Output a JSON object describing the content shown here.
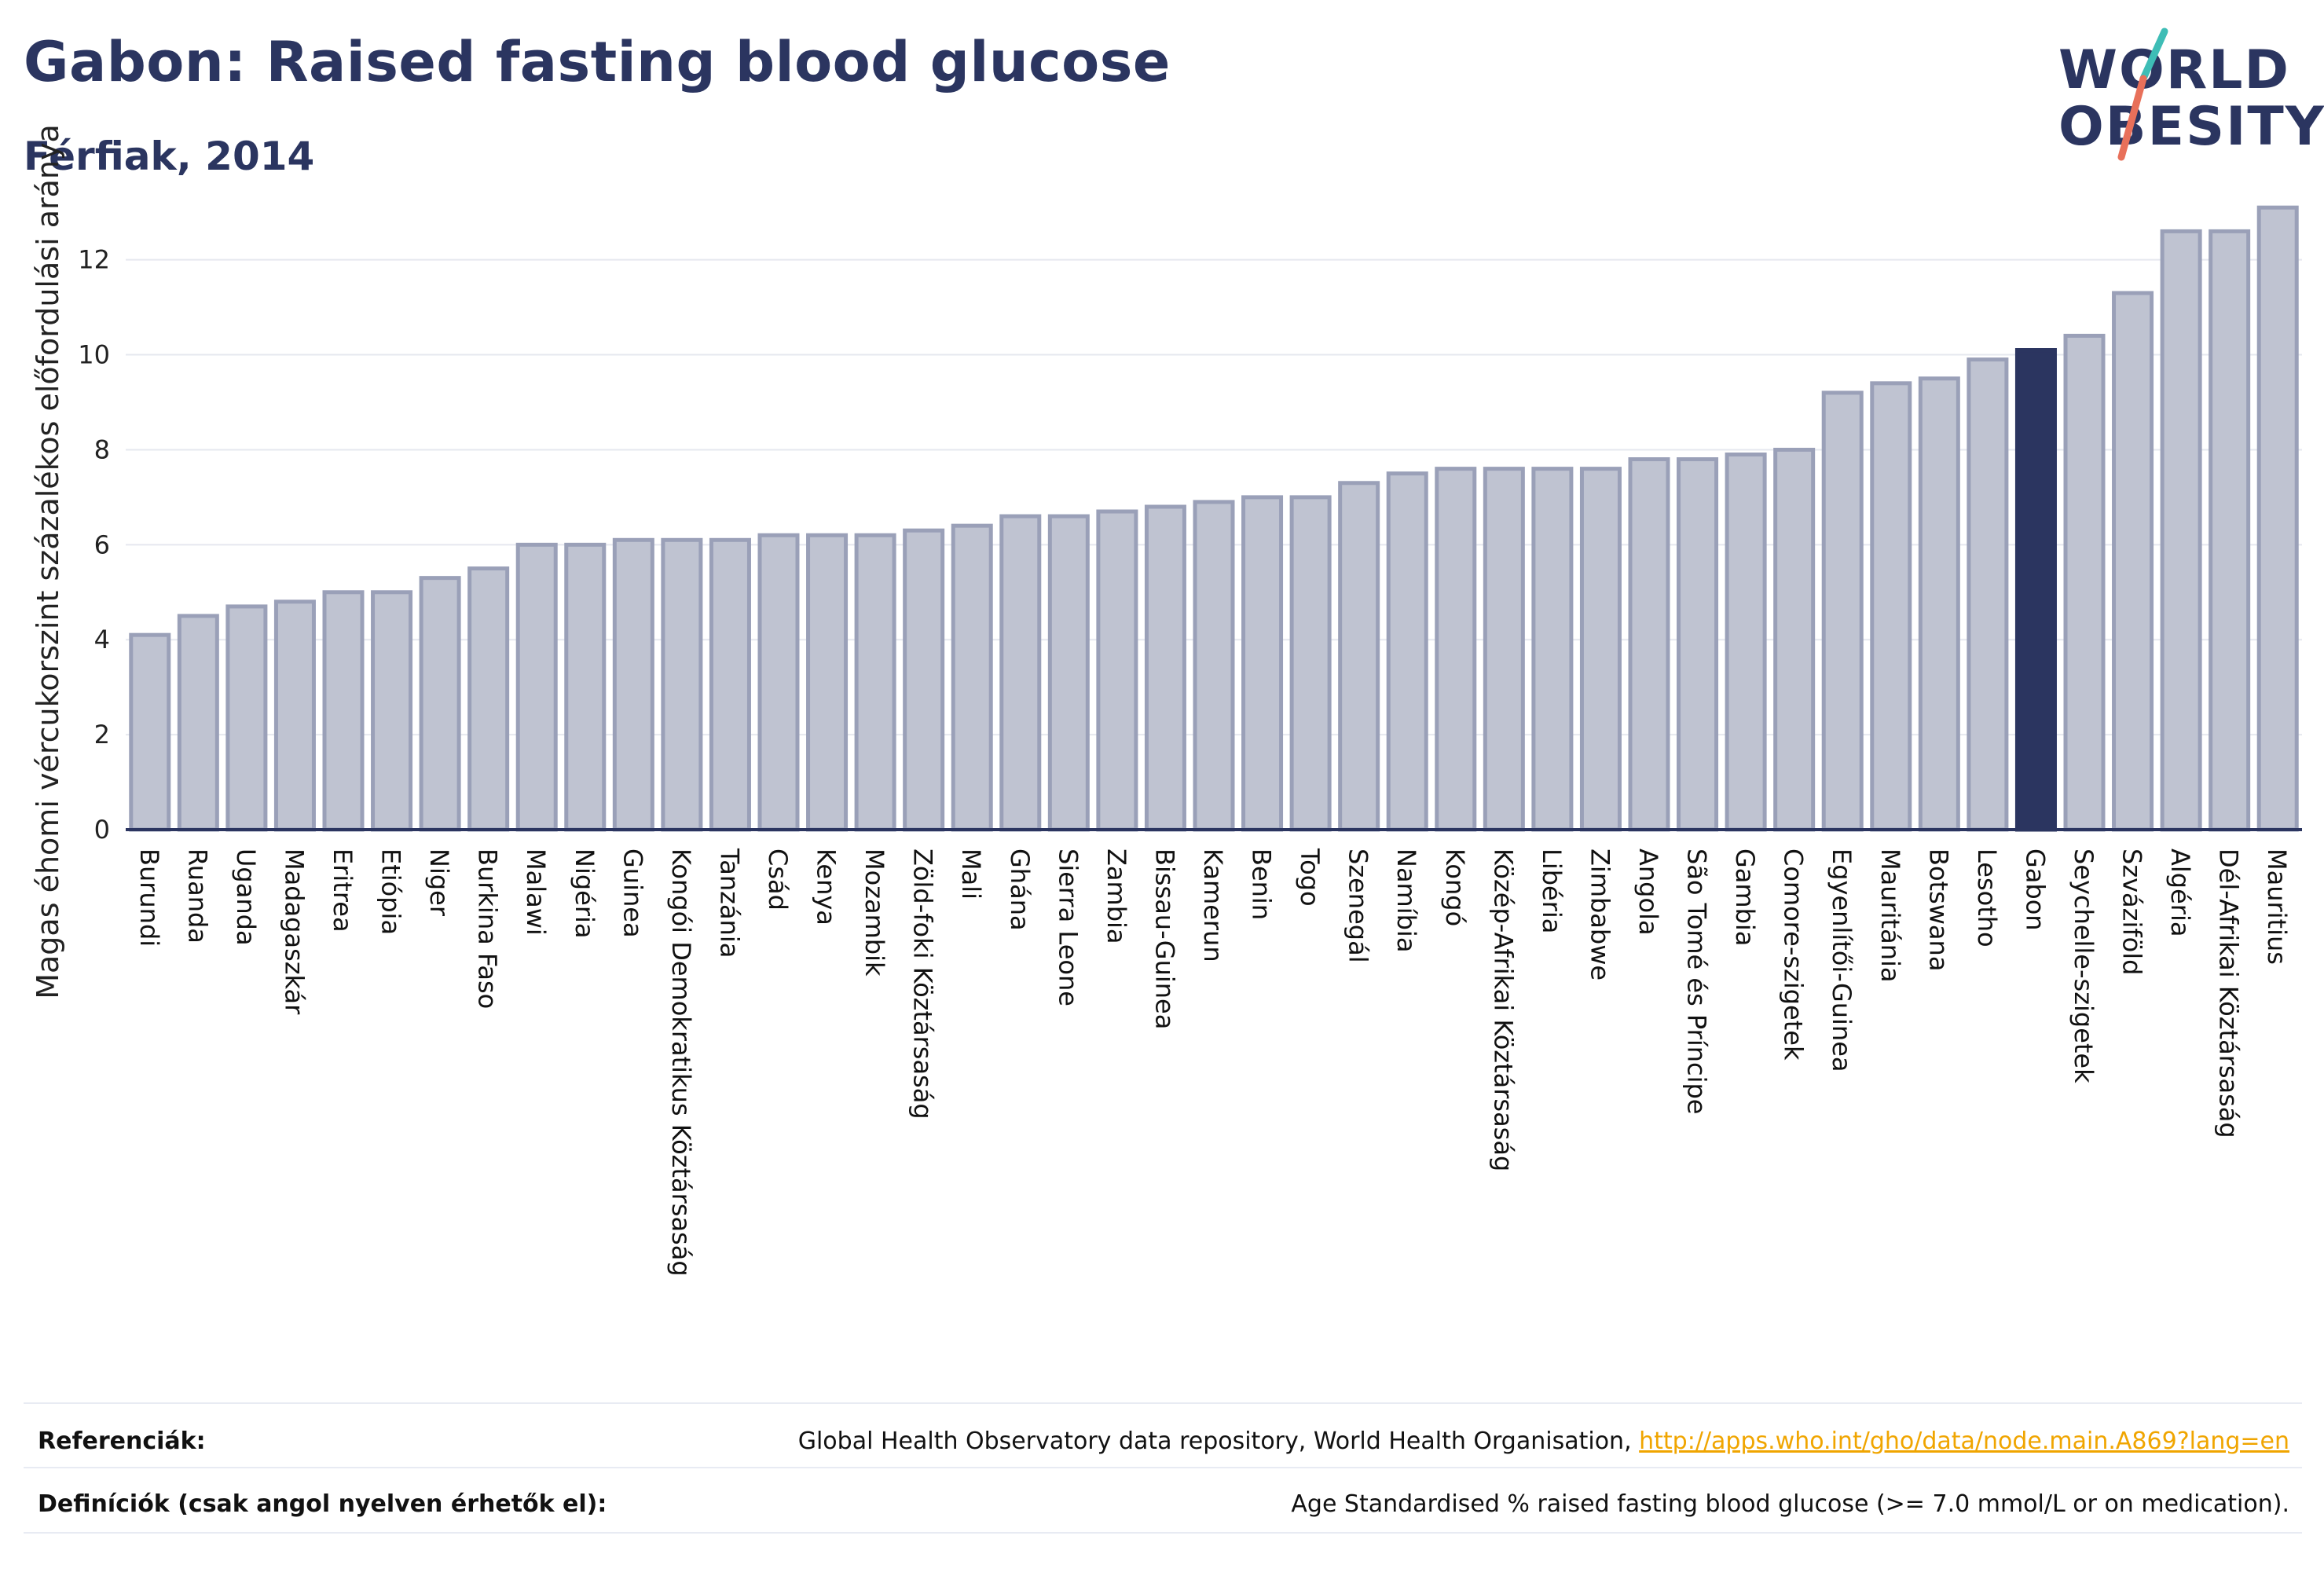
{
  "header": {
    "title": "Gabon: Raised fasting blood glucose",
    "subtitle": "Férfiak, 2014"
  },
  "logo": {
    "line1": "WORLD",
    "line2": "OBESITY",
    "accent_teal": "#3ebdb6",
    "accent_coral": "#e8705a"
  },
  "colors": {
    "bar": "#bfc3d1",
    "bar_stroke": "#9aa0b8",
    "highlight": "#2b3560",
    "grid": "#e6e8ef",
    "axis": "#2b3560"
  },
  "chart_data": {
    "type": "bar",
    "title": "Gabon: Raised fasting blood glucose",
    "subtitle": "Férfiak, 2014",
    "xlabel": "",
    "ylabel": "Magas éhomi vércukorszint százalékos előfordulási aránya",
    "ylim": [
      0,
      13.5
    ],
    "yticks": [
      0,
      2,
      4,
      6,
      8,
      10,
      12
    ],
    "grid": true,
    "highlight": "Gabon",
    "categories": [
      "Burundi",
      "Ruanda",
      "Uganda",
      "Madagaszkár",
      "Eritrea",
      "Etiópia",
      "Niger",
      "Burkina Faso",
      "Malawi",
      "Nigéria",
      "Guinea",
      "Kongói Demokratikus Köztársaság",
      "Tanzánia",
      "Csád",
      "Kenya",
      "Mozambik",
      "Zöld-foki Köztársaság",
      "Mali",
      "Ghána",
      "Sierra Leone",
      "Zambia",
      "Bissau-Guinea",
      "Kamerun",
      "Benin",
      "Togo",
      "Szenegál",
      "Namíbia",
      "Kongó",
      "Közép-Afrikai Köztársaság",
      "Libéria",
      "Zimbabwe",
      "Angola",
      "São Tomé és Príncipe",
      "Gambia",
      "Comore-szigetek",
      "Egyenlítői-Guinea",
      "Mauritánia",
      "Botswana",
      "Lesotho",
      "Gabon",
      "Seychelle-szigetek",
      "Szváziföld",
      "Algéria",
      "Dél-Afrikai Köztársaság",
      "Mauritius"
    ],
    "values": [
      4.1,
      4.5,
      4.7,
      4.8,
      5.0,
      5.0,
      5.3,
      5.5,
      6.0,
      6.0,
      6.1,
      6.1,
      6.1,
      6.2,
      6.2,
      6.2,
      6.3,
      6.4,
      6.6,
      6.6,
      6.7,
      6.8,
      6.9,
      7.0,
      7.0,
      7.3,
      7.5,
      7.6,
      7.6,
      7.6,
      7.6,
      7.8,
      7.8,
      7.9,
      8.0,
      9.2,
      9.4,
      9.5,
      9.9,
      10.1,
      10.4,
      11.3,
      12.6,
      12.6,
      13.1
    ]
  },
  "footer": {
    "references_label": "Referenciák:",
    "references_text": "Global Health Observatory data repository, World Health Organisation, ",
    "references_link": "http://apps.who.int/gho/data/node.main.A869?lang=en",
    "definitions_label": "Definíciók (csak angol nyelven érhetők el):",
    "definitions_text": "Age Standardised % raised fasting blood glucose (>= 7.0 mmol/L or on medication)."
  }
}
